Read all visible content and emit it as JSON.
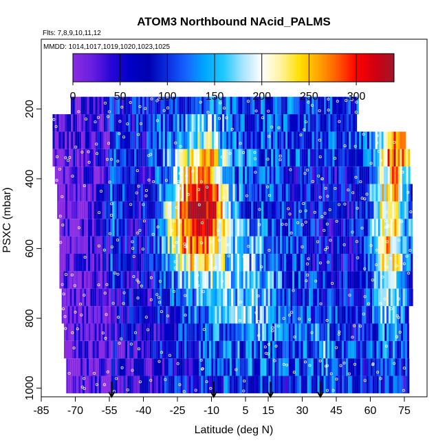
{
  "chart_data": {
    "type": "heatmap",
    "title": "ATOM3 Northbound NAcid_PALMS",
    "flights_text": "Flts: 7,8,9,10,11,12",
    "dates_text": "MMDD: 1014,1017,1019,1020,1023,1025",
    "xlabel": "Latitude (deg N)",
    "ylabel": "PSXC (mbar)",
    "xlim": [
      -85,
      85
    ],
    "ylim": [
      1025,
      0
    ],
    "x_ticks": [
      -85,
      -70,
      -55,
      -40,
      -25,
      -10,
      5,
      15,
      30,
      45,
      60,
      75
    ],
    "x_tick_labels": [
      "-85",
      "-70",
      "-55",
      "-40",
      "-25",
      "-10",
      "5",
      "15",
      "30",
      "45",
      "60",
      "75"
    ],
    "y_ticks": [
      200,
      400,
      600,
      800,
      1000
    ],
    "y_tick_labels": [
      "200",
      "400",
      "600",
      "800",
      "1000"
    ],
    "colorbar": {
      "min": 0,
      "max": 340,
      "ticks": [
        0,
        50,
        100,
        150,
        200,
        250,
        300
      ],
      "tick_labels": [
        "0",
        "50",
        "100",
        "150",
        "200",
        "250",
        "300"
      ],
      "colors": [
        "#8a2be2",
        "#6a1fe0",
        "#2a06d8",
        "#0000c8",
        "#0000b0",
        "#0a2ee0",
        "#1565ff",
        "#00a8ff",
        "#22c9ff",
        "#a8e4ff",
        "#ffffff",
        "#fff3a0",
        "#ffe000",
        "#ffa500",
        "#ff5a00",
        "#ff0000",
        "#d00010",
        "#a0152a"
      ]
    },
    "pressure_levels_mbar": [
      190,
      240,
      290,
      340,
      390,
      440,
      490,
      540,
      590,
      640,
      690,
      740,
      790,
      840,
      890,
      940,
      990
    ],
    "latitude_ranges_by_level": [
      [
        -72,
        54
      ],
      [
        -80,
        54
      ],
      [
        -80,
        75
      ],
      [
        -80,
        77
      ],
      [
        -79,
        77
      ],
      [
        -78,
        78
      ],
      [
        -78,
        78
      ],
      [
        -77,
        78
      ],
      [
        -77,
        78
      ],
      [
        -77,
        78
      ],
      [
        -77,
        78
      ],
      [
        -76,
        78
      ],
      [
        -76,
        77
      ],
      [
        -75,
        77
      ],
      [
        -75,
        77
      ],
      [
        -74,
        77
      ],
      [
        -74,
        77
      ]
    ],
    "summary": "Nitric acid (PALMS) curtain along ATom-3 northbound flights: mostly 0-120 in the lower troposphere and tropics, with enhanced values (200-320) between -30 and -5 deg N at 300-700 mbar and in the northern mid-latitudes near 65-75 deg N.",
    "flight_leg_markers_lat": [
      -54,
      -9,
      16,
      38
    ]
  }
}
